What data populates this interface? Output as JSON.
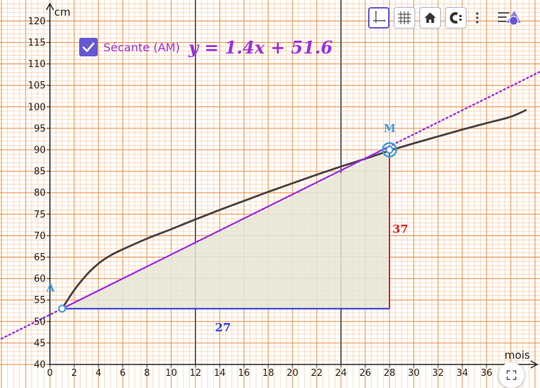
{
  "chart_data": {
    "type": "line",
    "xlabel": "mois",
    "ylabel": "cm",
    "xlim": [
      0,
      39
    ],
    "ylim": [
      40,
      123
    ],
    "x_ticks": [
      0,
      2,
      4,
      6,
      8,
      10,
      12,
      14,
      16,
      18,
      20,
      22,
      24,
      26,
      28,
      30,
      32,
      34,
      36
    ],
    "y_ticks": [
      40,
      45,
      50,
      55,
      60,
      65,
      70,
      75,
      80,
      85,
      90,
      95,
      100,
      105,
      110,
      115,
      120
    ],
    "grid": "millimetre grid (orange)",
    "reference_lines_x": [
      12,
      24
    ],
    "series": [
      {
        "type": "curve",
        "color": "#4a4040",
        "points": [
          [
            1,
            53
          ],
          [
            2,
            57.3
          ],
          [
            3,
            60.8
          ],
          [
            4,
            63.5
          ],
          [
            5,
            65.4
          ],
          [
            6,
            66.8
          ],
          [
            8,
            69.3
          ],
          [
            10,
            71.5
          ],
          [
            12,
            73.8
          ],
          [
            14,
            76.0
          ],
          [
            16,
            78.1
          ],
          [
            18,
            80.2
          ],
          [
            20,
            82.2
          ],
          [
            22,
            84.2
          ],
          [
            24,
            86.1
          ],
          [
            26,
            87.9
          ],
          [
            28,
            89.8
          ],
          [
            30,
            91.5
          ],
          [
            32,
            93.1
          ],
          [
            34,
            94.7
          ],
          [
            36,
            96.2
          ],
          [
            38,
            97.7
          ],
          [
            39.3,
            99.3
          ]
        ]
      },
      {
        "type": "secant",
        "color": "#9c2fe3",
        "slope": 1.4,
        "intercept": 51.6,
        "segment_x": [
          1,
          28
        ]
      }
    ],
    "points": [
      {
        "name": "A",
        "x": 1,
        "y": 53
      },
      {
        "name": "M",
        "x": 28,
        "y": 90
      }
    ],
    "slope_triangle": {
      "horizontal_label": "27",
      "vertical_label": "37",
      "horizontal_color": "#2f39d6",
      "vertical_color": "#e02020",
      "fill": "#e6e6d6"
    }
  },
  "secant_toggle": {
    "label": "Sécante (AM)",
    "equation": "y = 1.4x + 51.6",
    "checked": true,
    "color": "#9c2fe3",
    "checkbox_color": "#6557d2"
  },
  "toolbar": {
    "buttons": [
      {
        "name": "move-graphics-view-button",
        "icon": "axes-icon",
        "selected": true
      },
      {
        "name": "grid-toggle-button",
        "icon": "grid-icon",
        "selected": false
      },
      {
        "name": "standard-view-button",
        "icon": "home-icon",
        "selected": false
      },
      {
        "name": "point-capture-button",
        "icon": "magnet-c-icon",
        "selected": false
      }
    ],
    "more": "more-vertical-icon",
    "menu": "menu-graphing-icon"
  },
  "fullscreen_icon": "fullscreen-icon"
}
